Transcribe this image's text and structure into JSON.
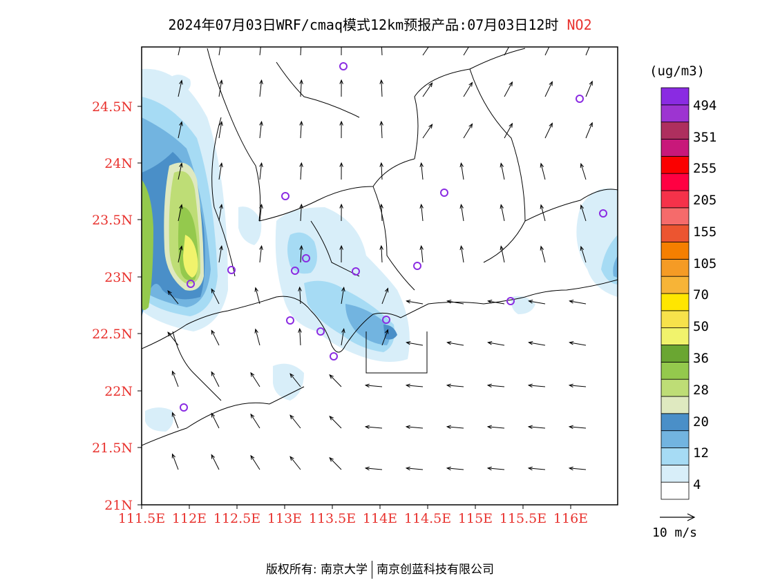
{
  "title": {
    "main": "2024年07月03日WRF/cmaq模式12km预报产品:07月03日12时",
    "pollutant": "NO2"
  },
  "map": {
    "lat_labels": [
      "24.5N",
      "24N",
      "23.5N",
      "23N",
      "22.5N",
      "22N",
      "21.5N",
      "21N"
    ],
    "lon_labels": [
      "111.5E",
      "112E",
      "112.5E",
      "113E",
      "113.5E",
      "114E",
      "114.5E",
      "115E",
      "115.5E",
      "116E"
    ],
    "label_color": "#e8322e",
    "station_color": "#8a2be2"
  },
  "colorbar": {
    "unit": "(ug/m3)",
    "labels": [
      "494",
      "351",
      "255",
      "205",
      "155",
      "105",
      "70",
      "50",
      "36",
      "28",
      "20",
      "12",
      "4"
    ],
    "colors": [
      "#ffffff",
      "#d8eef9",
      "#a6dbf4",
      "#72b4e0",
      "#4a8fc8",
      "#dfe9c0",
      "#bedd76",
      "#94c94d",
      "#6aa632",
      "#f1f36c",
      "#f7e24b",
      "#ffe600",
      "#f7b437",
      "#f59b25",
      "#f57f00",
      "#ec5530",
      "#f56b6b",
      "#f5324a",
      "#ff0042",
      "#fb0000",
      "#c8187a",
      "#ae2f5e",
      "#9d34d1",
      "#8a2be2"
    ]
  },
  "scale": {
    "label": "10 m/s"
  },
  "footer": {
    "copyright": "版权所有: 南京大学",
    "company": "南京创蓝科技有限公司"
  }
}
